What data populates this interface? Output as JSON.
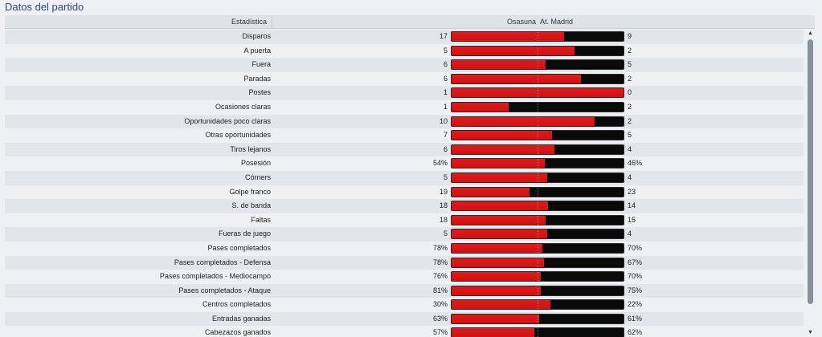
{
  "title": "Datos del partido",
  "header": {
    "stat": "Estadística",
    "home_team": "Osasuna",
    "away_team": "At. Madrid"
  },
  "colors": {
    "home": "#d01212",
    "away": "#0a0a0a"
  },
  "stats": [
    {
      "label": "Disparos",
      "home": "17",
      "away": "9",
      "home_share": 0.654
    },
    {
      "label": "A puerta",
      "home": "5",
      "away": "2",
      "home_share": 0.714
    },
    {
      "label": "Fuera",
      "home": "6",
      "away": "5",
      "home_share": 0.545
    },
    {
      "label": "Paradas",
      "home": "6",
      "away": "2",
      "home_share": 0.75
    },
    {
      "label": "Postes",
      "home": "1",
      "away": "0",
      "home_share": 1.0
    },
    {
      "label": "Ocasiones claras",
      "home": "1",
      "away": "2",
      "home_share": 0.333
    },
    {
      "label": "Oportunidades poco claras",
      "home": "10",
      "away": "2",
      "home_share": 0.833
    },
    {
      "label": "Otras oportunidades",
      "home": "7",
      "away": "5",
      "home_share": 0.583
    },
    {
      "label": "Tiros lejanos",
      "home": "6",
      "away": "4",
      "home_share": 0.6
    },
    {
      "label": "Posesión",
      "home": "54%",
      "away": "46%",
      "home_share": 0.54
    },
    {
      "label": "Córners",
      "home": "5",
      "away": "4",
      "home_share": 0.556
    },
    {
      "label": "Golpe franco",
      "home": "19",
      "away": "23",
      "home_share": 0.452
    },
    {
      "label": "S. de banda",
      "home": "18",
      "away": "14",
      "home_share": 0.5625
    },
    {
      "label": "Faltas",
      "home": "18",
      "away": "15",
      "home_share": 0.545
    },
    {
      "label": "Fueras de juego",
      "home": "5",
      "away": "4",
      "home_share": 0.556
    },
    {
      "label": "Pases completados",
      "home": "78%",
      "away": "70%",
      "home_share": 0.527
    },
    {
      "label": "Pases completados - Defensa",
      "home": "78%",
      "away": "67%",
      "home_share": 0.538
    },
    {
      "label": "Pases completados - Mediocampo",
      "home": "76%",
      "away": "70%",
      "home_share": 0.521
    },
    {
      "label": "Pases completados - Ataque",
      "home": "81%",
      "away": "75%",
      "home_share": 0.519
    },
    {
      "label": "Centros completados",
      "home": "30%",
      "away": "22%",
      "home_share": 0.577
    },
    {
      "label": "Entradas ganadas",
      "home": "63%",
      "away": "61%",
      "home_share": 0.508
    },
    {
      "label": "Cabezazos ganados",
      "home": "57%",
      "away": "62%",
      "home_share": 0.479
    }
  ],
  "scrollbar": {
    "up_icon": "▲",
    "down_icon": "▼"
  }
}
